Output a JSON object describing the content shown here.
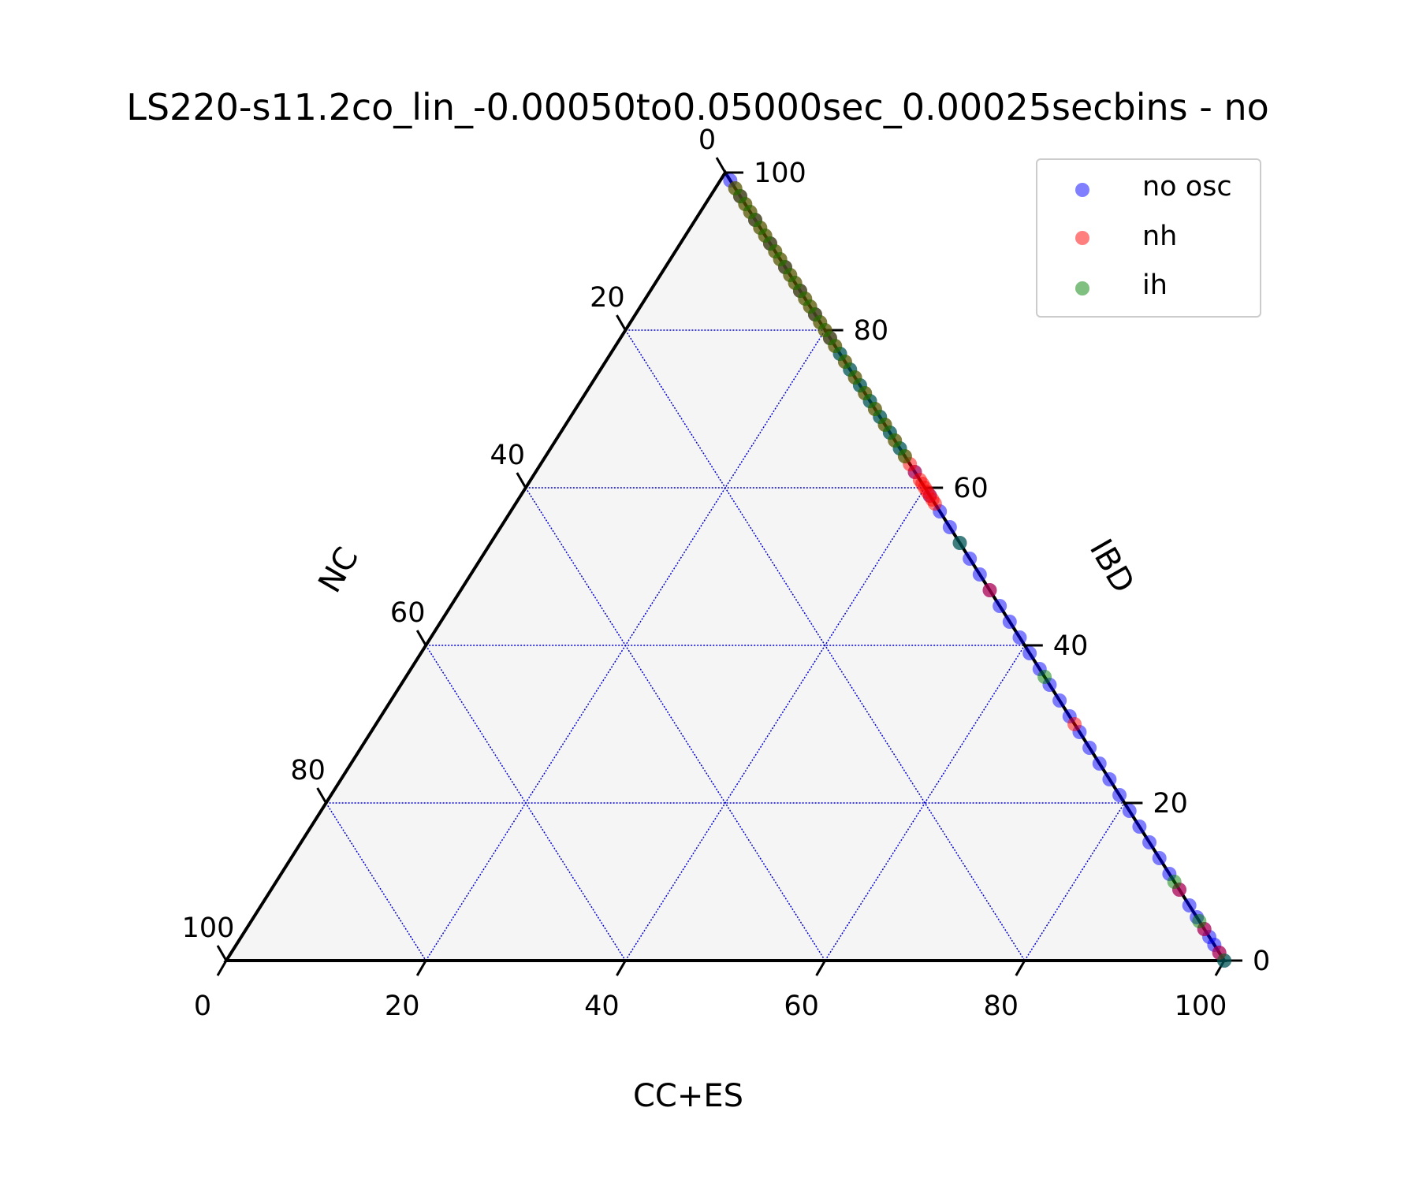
{
  "chart_data": {
    "type": "scatter",
    "subtype": "ternary",
    "title": "LS220-s11.2co_lin_-0.00050to0.05000sec_0.00025secbins - no",
    "axes": {
      "bottom": {
        "label": "CC+ES",
        "ticks": [
          "0",
          "20",
          "40",
          "60",
          "80",
          "100"
        ]
      },
      "right": {
        "label": "IBD",
        "ticks": [
          "0",
          "20",
          "40",
          "60",
          "80",
          "100"
        ]
      },
      "left": {
        "label": "NC",
        "ticks": [
          "0",
          "20",
          "40",
          "60",
          "80",
          "100"
        ]
      }
    },
    "range": [
      0,
      100
    ],
    "grid": true,
    "grid_color": "#0000cc",
    "background_color": "#f5f5f5",
    "legend": {
      "placement": "top-right",
      "entries": [
        "no osc",
        "nh",
        "ih"
      ]
    },
    "series": [
      {
        "name": "no osc",
        "color": "#0000ff",
        "note": "points given as [CC+ES, IBD, NC] percentages",
        "points": [
          [
            1,
            99,
            0
          ],
          [
            3,
            97,
            0
          ],
          [
            6,
            94,
            0
          ],
          [
            9,
            91,
            0
          ],
          [
            12,
            88,
            0
          ],
          [
            15,
            85,
            0
          ],
          [
            18,
            82,
            0
          ],
          [
            21,
            79,
            0
          ],
          [
            23,
            77,
            0
          ],
          [
            25,
            75,
            0
          ],
          [
            27,
            73,
            0
          ],
          [
            29,
            71,
            0
          ],
          [
            31,
            69,
            0
          ],
          [
            33,
            67,
            0
          ],
          [
            35,
            65,
            0
          ],
          [
            38,
            62,
            0
          ],
          [
            41,
            59,
            0
          ],
          [
            43,
            57,
            0
          ],
          [
            45,
            55,
            0
          ],
          [
            47,
            53,
            0
          ],
          [
            49,
            51,
            0
          ],
          [
            51,
            49,
            0
          ],
          [
            53,
            47,
            0
          ],
          [
            55,
            45,
            0
          ],
          [
            57,
            43,
            0
          ],
          [
            59,
            41,
            0
          ],
          [
            61,
            39,
            0
          ],
          [
            63,
            37,
            0
          ],
          [
            65,
            35,
            0
          ],
          [
            67,
            33,
            0
          ],
          [
            69,
            31,
            0
          ],
          [
            71,
            29,
            0
          ],
          [
            73,
            27,
            0
          ],
          [
            75,
            25,
            0
          ],
          [
            77,
            23,
            0
          ],
          [
            79,
            21,
            0
          ],
          [
            81,
            19,
            0
          ],
          [
            83,
            17,
            0
          ],
          [
            85,
            15,
            0
          ],
          [
            87,
            13,
            0
          ],
          [
            89,
            11,
            0
          ],
          [
            91,
            9,
            0
          ],
          [
            93,
            7,
            0
          ],
          [
            94.5,
            5.5,
            0
          ],
          [
            96,
            4,
            0
          ],
          [
            97,
            3,
            0
          ],
          [
            98,
            2,
            0
          ],
          [
            99,
            1,
            0
          ],
          [
            100,
            0,
            0
          ]
        ]
      },
      {
        "name": "nh",
        "color": "#ff0000",
        "points": [
          [
            2,
            98,
            0
          ],
          [
            3,
            97,
            0
          ],
          [
            4,
            96,
            0
          ],
          [
            5,
            95,
            0
          ],
          [
            6,
            94,
            0
          ],
          [
            7,
            93,
            0
          ],
          [
            8,
            92,
            0
          ],
          [
            9,
            91,
            0
          ],
          [
            10,
            90,
            0
          ],
          [
            11,
            89,
            0
          ],
          [
            12,
            88,
            0
          ],
          [
            13,
            87,
            0
          ],
          [
            14,
            86,
            0
          ],
          [
            15,
            85,
            0
          ],
          [
            16,
            84,
            0
          ],
          [
            17,
            83,
            0
          ],
          [
            18,
            82,
            0
          ],
          [
            19,
            81,
            0
          ],
          [
            20,
            80,
            0
          ],
          [
            21,
            79,
            0
          ],
          [
            22,
            78,
            0
          ],
          [
            24,
            76,
            0
          ],
          [
            26,
            74,
            0
          ],
          [
            28,
            72,
            0
          ],
          [
            30,
            70,
            0
          ],
          [
            32,
            68,
            0
          ],
          [
            34,
            66,
            0
          ],
          [
            36,
            64,
            0
          ],
          [
            37,
            63,
            0
          ],
          [
            38,
            62,
            0
          ],
          [
            39,
            61,
            0
          ],
          [
            39.5,
            60.5,
            0
          ],
          [
            40,
            60,
            0
          ],
          [
            40.5,
            59.5,
            0
          ],
          [
            41,
            59,
            0
          ],
          [
            41.5,
            58.5,
            0
          ],
          [
            42,
            58,
            0
          ],
          [
            53,
            47,
            0
          ],
          [
            70,
            30,
            0
          ],
          [
            91,
            9,
            0
          ],
          [
            96,
            4,
            0
          ],
          [
            99,
            1,
            0
          ]
        ]
      },
      {
        "name": "ih",
        "color": "#008000",
        "points": [
          [
            2,
            98,
            0
          ],
          [
            3,
            97,
            0
          ],
          [
            4,
            96,
            0
          ],
          [
            5,
            95,
            0
          ],
          [
            6,
            94,
            0
          ],
          [
            7,
            93,
            0
          ],
          [
            8,
            92,
            0
          ],
          [
            9,
            91,
            0
          ],
          [
            10,
            90,
            0
          ],
          [
            11,
            89,
            0
          ],
          [
            12,
            88,
            0
          ],
          [
            13,
            87,
            0
          ],
          [
            14,
            86,
            0
          ],
          [
            15,
            85,
            0
          ],
          [
            16,
            84,
            0
          ],
          [
            17,
            83,
            0
          ],
          [
            18,
            82,
            0
          ],
          [
            19,
            81,
            0
          ],
          [
            20,
            80,
            0
          ],
          [
            21,
            79,
            0
          ],
          [
            22,
            78,
            0
          ],
          [
            23,
            77,
            0
          ],
          [
            24,
            76,
            0
          ],
          [
            25,
            75,
            0
          ],
          [
            26,
            74,
            0
          ],
          [
            27,
            73,
            0
          ],
          [
            28,
            72,
            0
          ],
          [
            29,
            71,
            0
          ],
          [
            30,
            70,
            0
          ],
          [
            31,
            69,
            0
          ],
          [
            32,
            68,
            0
          ],
          [
            33,
            67,
            0
          ],
          [
            34,
            66,
            0
          ],
          [
            35,
            65,
            0
          ],
          [
            36,
            64,
            0
          ],
          [
            47,
            53,
            0
          ],
          [
            64,
            36,
            0
          ],
          [
            90,
            10,
            0
          ],
          [
            95,
            5,
            0
          ],
          [
            100,
            0,
            0
          ]
        ]
      }
    ]
  }
}
